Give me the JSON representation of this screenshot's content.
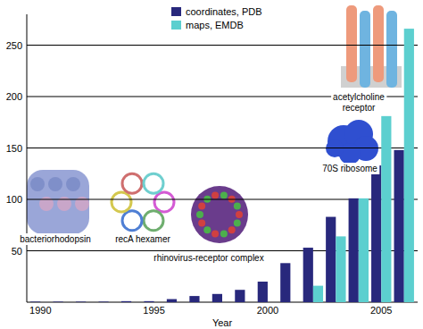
{
  "chart_data": {
    "type": "bar",
    "x": [
      1990,
      1991,
      1992,
      1993,
      1994,
      1995,
      1996,
      1997,
      1998,
      1999,
      2000,
      2001,
      2002,
      2003,
      2004,
      2005,
      2006
    ],
    "series": [
      {
        "name": "coordinates, PDB",
        "color": "#28287c",
        "values": [
          0.5,
          0.5,
          0.5,
          0.5,
          1,
          1,
          3,
          6,
          8,
          12,
          20,
          38,
          53,
          83,
          101,
          133,
          148
        ]
      },
      {
        "name": "maps, EMDB",
        "color": "#5ccfcf",
        "values": [
          null,
          null,
          null,
          null,
          null,
          null,
          null,
          null,
          null,
          null,
          null,
          null,
          16,
          64,
          101,
          181,
          266
        ]
      }
    ],
    "x_label": "Year",
    "xlim": [
      1989.4,
      2006.6
    ],
    "xticks": [
      1990,
      1995,
      2000,
      2005
    ],
    "ylim": [
      0,
      280
    ],
    "yticks": [
      50,
      100,
      150,
      200,
      250
    ],
    "grid": true,
    "legend": "top",
    "annotations": [
      "bacteriorhodopsin",
      "recA hexamer",
      "rhinovirus-receptor complex",
      "70S ribosome",
      "acetylcholine receptor"
    ]
  }
}
